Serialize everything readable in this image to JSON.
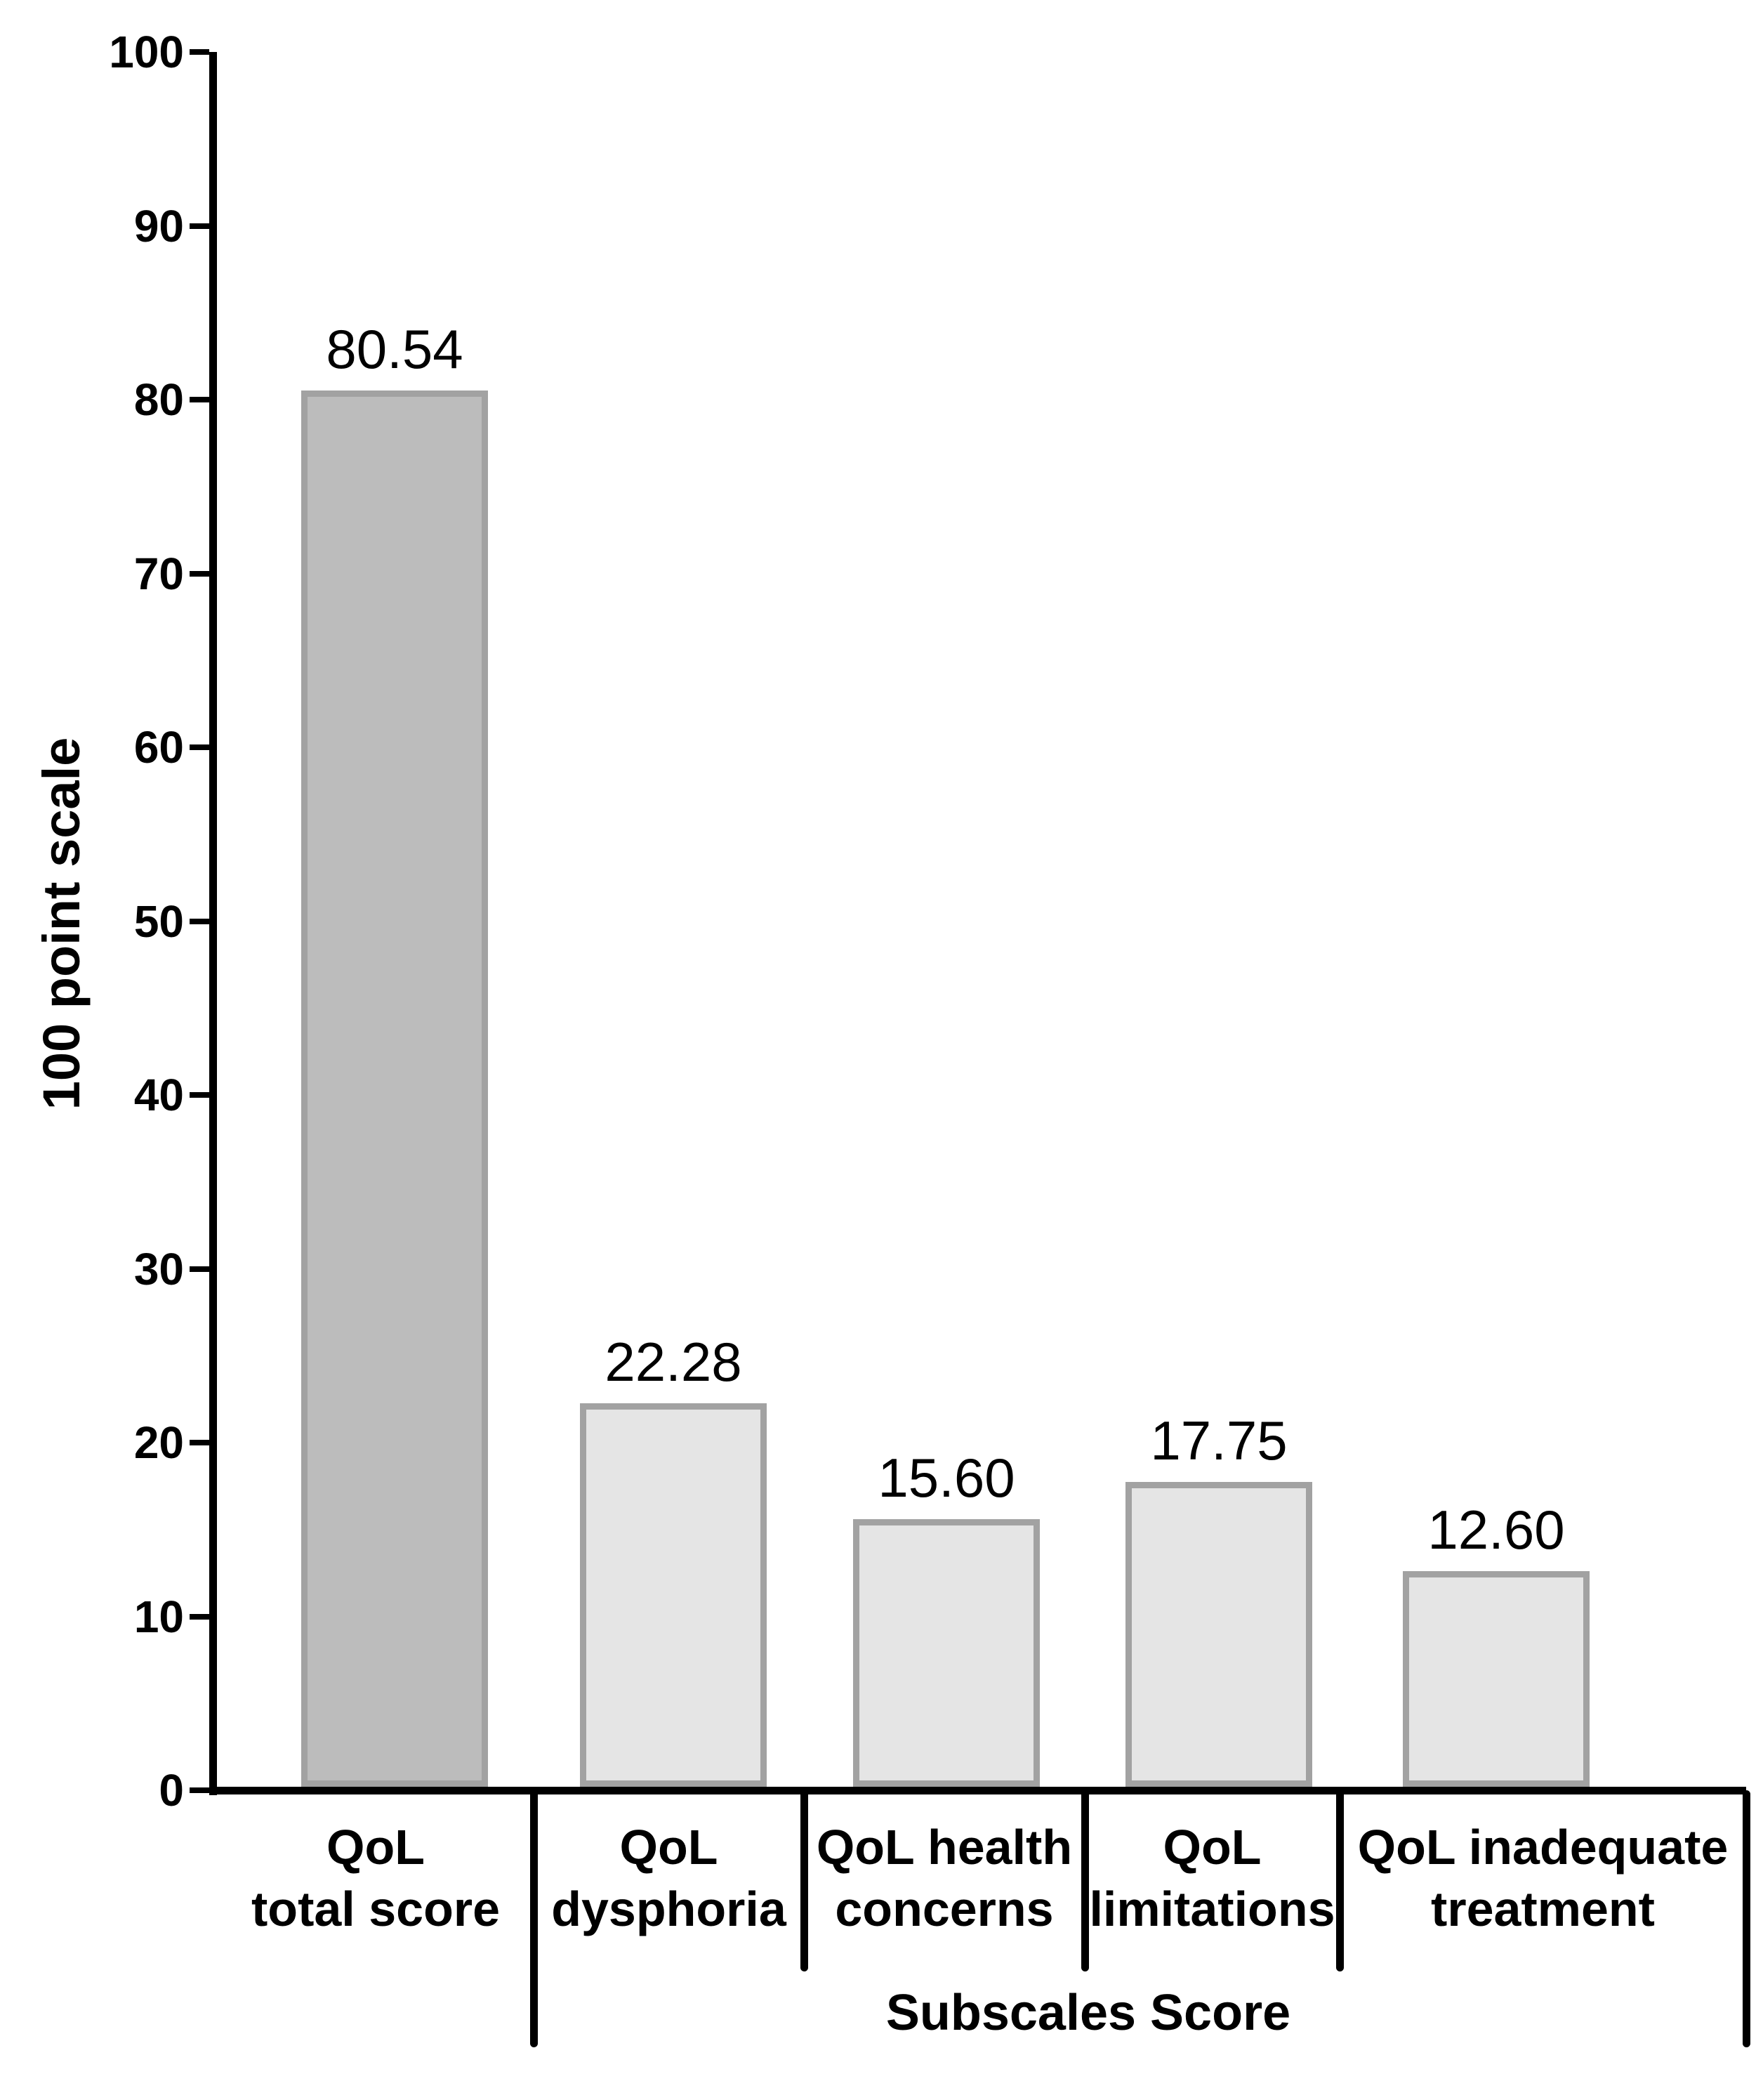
{
  "chart_data": {
    "type": "bar",
    "categories": [
      "QoL\ntotal score",
      "QoL\ndysphoria",
      "QoL health\nconcerns",
      "QoL\nlimitations",
      "QoL inadequate\ntreatment"
    ],
    "values": [
      80.54,
      22.28,
      15.6,
      17.75,
      12.6
    ],
    "value_labels": [
      "80.54",
      "22.28",
      "15.60",
      "17.75",
      "12.60"
    ],
    "title": "",
    "xlabel": "",
    "ylabel": "100 point scale",
    "ylim": [
      0,
      100
    ],
    "ytick_step": 10,
    "ytick_labels": [
      "0",
      "10",
      "20",
      "30",
      "40",
      "50",
      "60",
      "70",
      "80",
      "90",
      "100"
    ],
    "grid": false,
    "legend": null,
    "subscales_group": {
      "label": "Subscales Score",
      "category_indexes": [
        1,
        2,
        3,
        4
      ]
    }
  },
  "colors": {
    "background": "#ffffff",
    "text": "#000000",
    "axis": "#000000",
    "bar_fill_total": "#bcbcbc",
    "bar_fill_subscale": "#e5e5e5",
    "bar_border": "#a2a2a2"
  }
}
